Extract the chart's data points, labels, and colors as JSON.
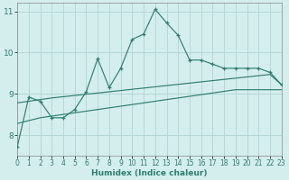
{
  "x": [
    0,
    1,
    2,
    3,
    4,
    5,
    6,
    7,
    8,
    9,
    10,
    11,
    12,
    13,
    14,
    15,
    16,
    17,
    18,
    19,
    20,
    21,
    22,
    23
  ],
  "y_main": [
    7.72,
    8.92,
    8.82,
    8.42,
    8.42,
    8.62,
    9.05,
    9.85,
    9.15,
    9.62,
    10.32,
    10.45,
    11.05,
    10.72,
    10.42,
    9.82,
    9.82,
    9.72,
    9.62,
    9.62,
    9.62,
    9.62,
    9.52,
    9.22
  ],
  "y_upper": [
    8.78,
    8.82,
    8.86,
    8.9,
    8.93,
    8.96,
    8.99,
    9.02,
    9.05,
    9.08,
    9.11,
    9.14,
    9.17,
    9.2,
    9.23,
    9.26,
    9.29,
    9.32,
    9.35,
    9.38,
    9.41,
    9.44,
    9.47,
    9.22
  ],
  "y_lower": [
    8.28,
    8.35,
    8.42,
    8.46,
    8.5,
    8.54,
    8.58,
    8.62,
    8.66,
    8.7,
    8.74,
    8.78,
    8.82,
    8.86,
    8.9,
    8.94,
    8.98,
    9.02,
    9.06,
    9.1,
    9.1,
    9.1,
    9.1,
    9.1
  ],
  "line_color": "#2e7f70",
  "bg_color": "#d4eeed",
  "grid_color": "#b4d8d5",
  "xlabel": "Humidex (Indice chaleur)",
  "xlim": [
    0,
    23
  ],
  "ylim": [
    7.5,
    11.2
  ],
  "yticks": [
    8,
    9,
    10,
    11
  ],
  "xticks": [
    0,
    1,
    2,
    3,
    4,
    5,
    6,
    7,
    8,
    9,
    10,
    11,
    12,
    13,
    14,
    15,
    16,
    17,
    18,
    19,
    20,
    21,
    22,
    23
  ]
}
